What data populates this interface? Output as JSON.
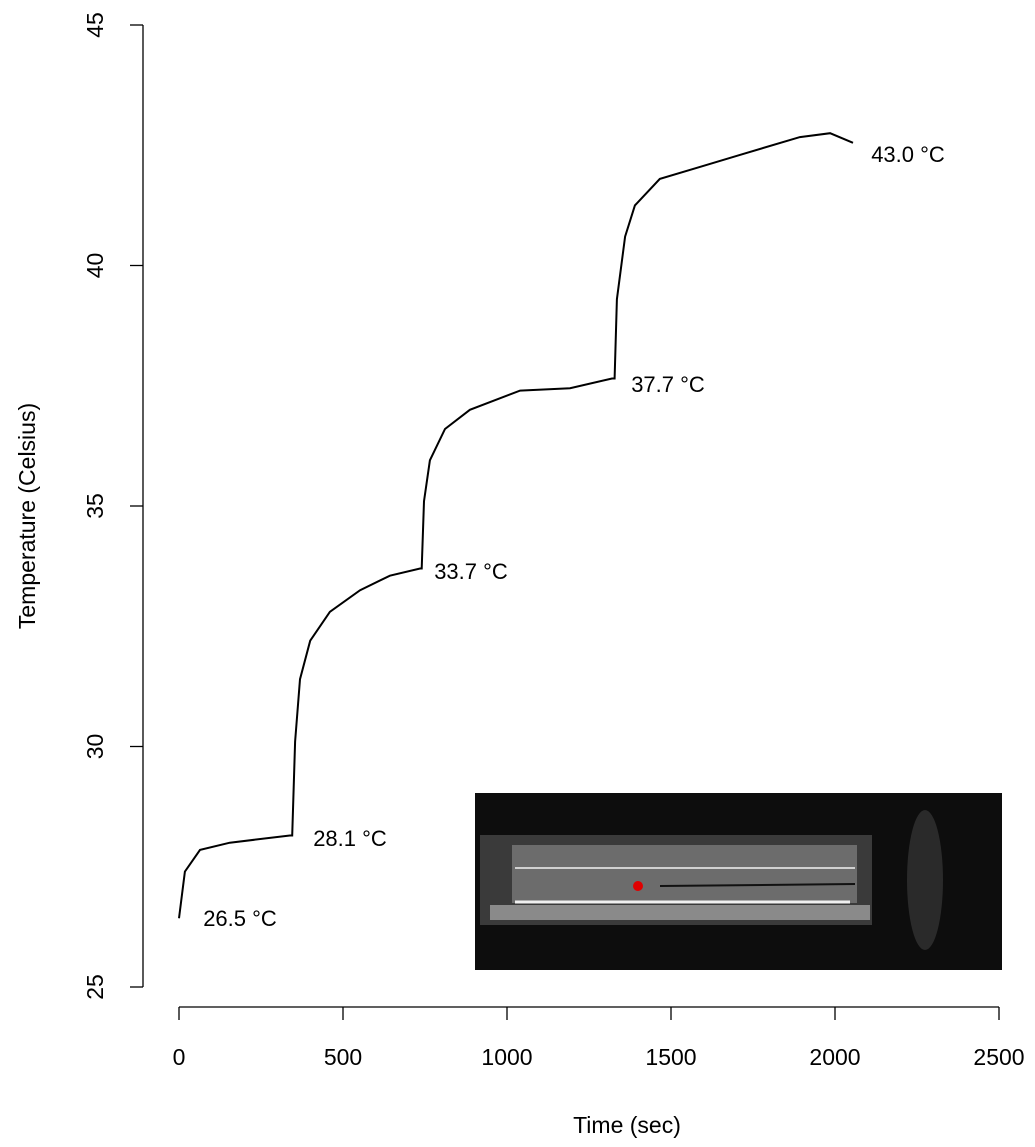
{
  "chart_data": {
    "type": "line",
    "x_label": "Time (sec)",
    "y_label": "Temperature (Celsius)",
    "x": [
      0,
      18,
      64,
      155,
      338,
      345,
      354,
      369,
      400,
      460,
      552,
      643,
      735,
      740,
      747,
      765,
      811,
      887,
      1040,
      1192,
      1320,
      1328,
      1335,
      1360,
      1390,
      1466,
      1588,
      1710,
      1893,
      1985,
      2055
    ],
    "series": [
      {
        "color": "#000000",
        "values": [
          26.43,
          27.4,
          27.85,
          28.0,
          28.15,
          28.15,
          30.1,
          31.4,
          32.2,
          32.8,
          33.25,
          33.55,
          33.7,
          33.7,
          35.1,
          35.95,
          36.6,
          37.0,
          37.4,
          37.45,
          37.65,
          37.65,
          39.3,
          40.6,
          41.25,
          41.8,
          42.05,
          42.3,
          42.67,
          42.75,
          42.55
        ]
      }
    ],
    "annotations": [
      "26.5 °C",
      "28.1 °C",
      "33.7 °C",
      "37.7 °C",
      "43.0 °C"
    ],
    "xlim": [
      0,
      2500
    ],
    "xticks": [
      0,
      500,
      1000,
      1500,
      2000,
      2500
    ],
    "ylim": [
      25,
      45
    ],
    "yticks": [
      25,
      30,
      35,
      40,
      45
    ]
  }
}
